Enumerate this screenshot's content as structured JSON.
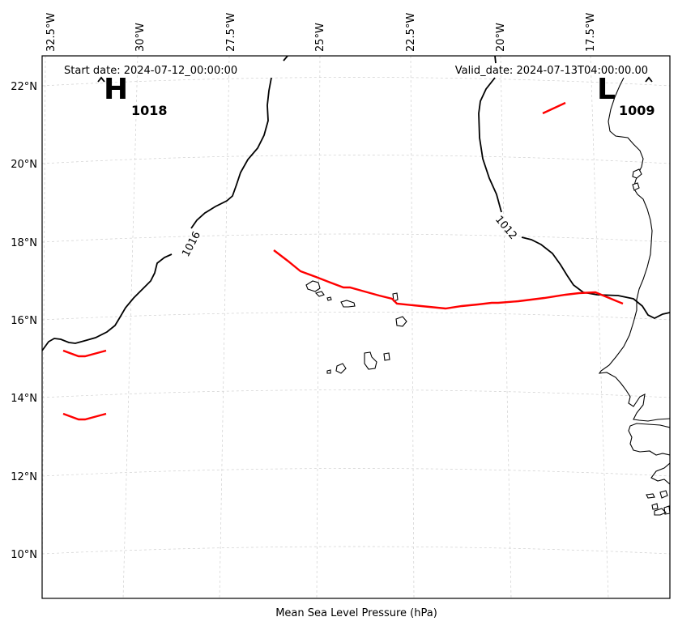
{
  "header": {
    "start_date": "Start date: 2024-07-12_00:00:00",
    "valid_date": "Valid_date: 2024-07-13T04:00:00.00"
  },
  "footer": {
    "caption": "Mean Sea Level Pressure (hPa)"
  },
  "axes": {
    "lon_labels": [
      "32.5°W",
      "30°W",
      "27.5°W",
      "25°W",
      "22.5°W",
      "20°W",
      "17.5°W"
    ],
    "lat_labels": [
      "22°N",
      "20°N",
      "18°N",
      "16°N",
      "14°N",
      "12°N",
      "10°N"
    ]
  },
  "pressure_centers": {
    "high": {
      "letter": "H",
      "value": "1018"
    },
    "low": {
      "letter": "L",
      "value": "1009"
    }
  },
  "contours": {
    "c1016": "1016",
    "c1012": "1012"
  },
  "colors": {
    "front": "#ff0000",
    "contour": "#000000",
    "grid": "#cfcfcf"
  }
}
